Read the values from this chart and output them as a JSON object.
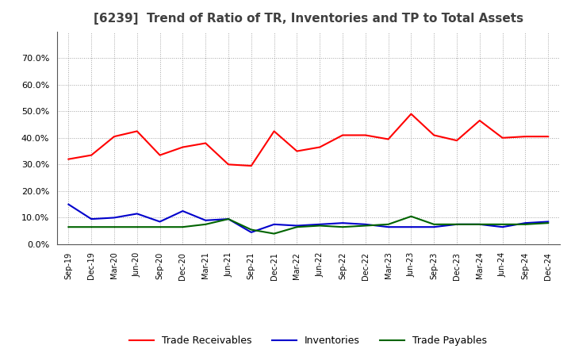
{
  "title": "[6239]  Trend of Ratio of TR, Inventories and TP to Total Assets",
  "x_labels": [
    "Sep-19",
    "Dec-19",
    "Mar-20",
    "Jun-20",
    "Sep-20",
    "Dec-20",
    "Mar-21",
    "Jun-21",
    "Sep-21",
    "Dec-21",
    "Mar-22",
    "Jun-22",
    "Sep-22",
    "Dec-22",
    "Mar-23",
    "Jun-23",
    "Sep-23",
    "Dec-23",
    "Mar-24",
    "Jun-24",
    "Sep-24",
    "Dec-24"
  ],
  "trade_receivables": [
    0.32,
    0.335,
    0.405,
    0.425,
    0.335,
    0.365,
    0.38,
    0.3,
    0.295,
    0.425,
    0.35,
    0.365,
    0.41,
    0.41,
    0.395,
    0.49,
    0.41,
    0.39,
    0.465,
    0.4,
    0.405,
    0.405
  ],
  "inventories": [
    0.15,
    0.095,
    0.1,
    0.115,
    0.085,
    0.125,
    0.09,
    0.095,
    0.045,
    0.075,
    0.07,
    0.075,
    0.08,
    0.075,
    0.065,
    0.065,
    0.065,
    0.075,
    0.075,
    0.065,
    0.08,
    0.085
  ],
  "trade_payables": [
    0.065,
    0.065,
    0.065,
    0.065,
    0.065,
    0.065,
    0.075,
    0.095,
    0.055,
    0.04,
    0.065,
    0.07,
    0.065,
    0.07,
    0.075,
    0.105,
    0.075,
    0.075,
    0.075,
    0.075,
    0.075,
    0.08
  ],
  "tr_color": "#ff0000",
  "inv_color": "#0000cc",
  "tp_color": "#006400",
  "ylim": [
    0.0,
    0.8
  ],
  "yticks": [
    0.0,
    0.1,
    0.2,
    0.3,
    0.4,
    0.5,
    0.6,
    0.7
  ],
  "bg_color": "#ffffff",
  "grid_color": "#999999",
  "title_color": "#404040",
  "legend_labels": [
    "Trade Receivables",
    "Inventories",
    "Trade Payables"
  ]
}
